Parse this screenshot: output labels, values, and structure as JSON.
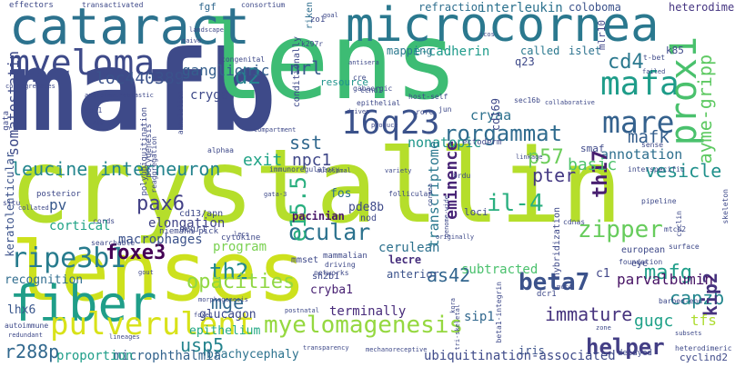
{
  "words": [
    {
      "text": "crystallin",
      "color": "#b5de2b"
    },
    {
      "text": "lenses",
      "color": "#cde11d"
    },
    {
      "text": "mafb",
      "color": "#3e4a89"
    },
    {
      "text": "lens",
      "color": "#3dbc74"
    },
    {
      "text": "microcornea",
      "color": "#2a788e"
    },
    {
      "text": "cataract",
      "color": "#2c728e"
    },
    {
      "text": "fiber",
      "color": "#1f9e89"
    },
    {
      "text": "myeloma",
      "color": "#3e4a89"
    },
    {
      "text": "mafa",
      "color": "#1e9c89"
    },
    {
      "text": "mare",
      "color": "#34618d"
    },
    {
      "text": "prox1",
      "color": "#4ac16d"
    },
    {
      "text": "16q23",
      "color": "#3b528b"
    },
    {
      "text": "d2",
      "color": "#26828e"
    },
    {
      "text": "pulverulent",
      "color": "#d8e219"
    },
    {
      "text": "ripe3b1",
      "color": "#287c8e"
    },
    {
      "text": "leucine",
      "color": "#24868e"
    },
    {
      "text": "interneuron",
      "color": "#25848e"
    },
    {
      "text": "rorgammat",
      "color": "#2f6b8e"
    },
    {
      "text": "myelomagenesis",
      "color": "#95d840"
    },
    {
      "text": "zipper",
      "color": "#67cc5c"
    },
    {
      "text": "ocular",
      "color": "#2c728e"
    },
    {
      "text": "foxe3",
      "color": "#440154"
    },
    {
      "text": "ganglionic",
      "color": "#355f8d"
    },
    {
      "text": "loc440389",
      "color": "#3b528b"
    },
    {
      "text": "nrl",
      "color": "#38598c"
    },
    {
      "text": "cd4",
      "color": "#2a788e"
    },
    {
      "text": "annotation",
      "color": "#2e6f8e"
    },
    {
      "text": "ayme-gripp",
      "color": "#5ec962"
    },
    {
      "text": "mafk",
      "color": "#355f8d"
    },
    {
      "text": "vesicle",
      "color": "#21918c"
    },
    {
      "text": "sst",
      "color": "#31688e"
    },
    {
      "text": "exit",
      "color": "#20a386"
    },
    {
      "text": "npc1",
      "color": "#3f4788"
    },
    {
      "text": "p57",
      "color": "#6ccd5a"
    },
    {
      "text": "il-4",
      "color": "#29af7f"
    },
    {
      "text": "th17",
      "color": "#481f70"
    },
    {
      "text": "pter",
      "color": "#443983"
    },
    {
      "text": "basic",
      "color": "#4ec36b"
    },
    {
      "text": "pax6",
      "color": "#424086"
    },
    {
      "text": "e15.5",
      "color": "#29af7f"
    },
    {
      "text": "as42",
      "color": "#32658e"
    },
    {
      "text": "beta7",
      "color": "#3b528b"
    },
    {
      "text": "th2",
      "color": "#23898e"
    },
    {
      "text": "mge",
      "color": "#31688e"
    },
    {
      "text": "opacities",
      "color": "#90d743"
    },
    {
      "text": "mafg",
      "color": "#1f9e89"
    },
    {
      "text": "immature",
      "color": "#46337e"
    },
    {
      "text": "capzb",
      "color": "#24878e"
    },
    {
      "text": "helper",
      "color": "#433e85"
    },
    {
      "text": "usp5",
      "color": "#25848e"
    },
    {
      "text": "r288p",
      "color": "#31688e"
    },
    {
      "text": "kip2",
      "color": "#46327e"
    },
    {
      "text": "gugc",
      "color": "#1fa188"
    },
    {
      "text": "tfs",
      "color": "#addc30"
    },
    {
      "text": "parvalbumin",
      "color": "#471365"
    },
    {
      "text": "eminence",
      "color": "#482576"
    },
    {
      "text": "nonatopic",
      "color": "#1f968b"
    },
    {
      "text": "cryaa",
      "color": "#2d718e"
    },
    {
      "text": "transcriptome",
      "color": "#2a788e"
    },
    {
      "text": "pv",
      "color": "#38598c"
    },
    {
      "text": "macrophages",
      "color": "#3b528b"
    },
    {
      "text": "elongation",
      "color": "#414487"
    },
    {
      "text": "cortical",
      "color": "#20a386"
    },
    {
      "text": "pacinian",
      "color": "#481769"
    },
    {
      "text": "cryba1",
      "color": "#482173"
    },
    {
      "text": "c1",
      "color": "#404688"
    },
    {
      "text": "sip1",
      "color": "#31688e"
    },
    {
      "text": "fos",
      "color": "#2d708e"
    },
    {
      "text": "pde8b",
      "color": "#3e4989"
    },
    {
      "text": "cerulean",
      "color": "#2d718e"
    },
    {
      "text": "lecre",
      "color": "#472f7d"
    },
    {
      "text": "subtracted",
      "color": "#4ac16d"
    },
    {
      "text": "anterior",
      "color": "#3b528b"
    },
    {
      "text": "terminally",
      "color": "#472a7a"
    },
    {
      "text": "program",
      "color": "#7ad151"
    },
    {
      "text": "glucagon",
      "color": "#3e4a89"
    },
    {
      "text": "epithelium",
      "color": "#22a884"
    },
    {
      "text": "brachycephaly",
      "color": "#2c728e"
    },
    {
      "text": "microphthalmia",
      "color": "#33638d"
    },
    {
      "text": "proportion",
      "color": "#1f9e89"
    },
    {
      "text": "ubiquitination-associated",
      "color": "#3e4a89"
    },
    {
      "text": "iris",
      "color": "#3b528b"
    },
    {
      "text": "recognition",
      "color": "#2f6c8e"
    },
    {
      "text": "lhx6",
      "color": "#39568c"
    },
    {
      "text": "keratolenticular",
      "color": "#3b528b"
    },
    {
      "text": "somatostatin",
      "color": "#3e4a89"
    },
    {
      "text": "cryga",
      "color": "#3e4989"
    },
    {
      "text": "resource",
      "color": "#1f948c"
    },
    {
      "text": "refraction",
      "color": "#2e6e8e"
    },
    {
      "text": "interleukin",
      "color": "#2c728e"
    },
    {
      "text": "coloboma",
      "color": "#3b528b"
    },
    {
      "text": "heterodimers",
      "color": "#453581"
    },
    {
      "text": "e-cadherin",
      "color": "#1e9b8a"
    },
    {
      "text": "mapping",
      "color": "#2a788e"
    },
    {
      "text": "called",
      "color": "#2a788e"
    },
    {
      "text": "islet",
      "color": "#2c728e"
    },
    {
      "text": "q23",
      "color": "#3e4989"
    },
    {
      "text": "k85",
      "color": "#3e4989"
    },
    {
      "text": "mlr10",
      "color": "#404588"
    },
    {
      "text": "cd169",
      "color": "#3e4989"
    },
    {
      "text": "smaf",
      "color": "#3e4989"
    },
    {
      "text": "fgf",
      "color": "#31688e"
    },
    {
      "text": "riken",
      "color": "#2e6e8e"
    },
    {
      "text": "eye",
      "color": "#3e4989"
    },
    {
      "text": "cyclind2",
      "color": "#3e4989"
    },
    {
      "text": "dcr1",
      "color": "#3e4989"
    },
    {
      "text": "ectoderm",
      "color": "#3e4989"
    },
    {
      "text": "cd13/apn",
      "color": "#3e4989"
    },
    {
      "text": "sh2b1",
      "color": "#3e4989"
    },
    {
      "text": "mmset",
      "color": "#3e4989"
    },
    {
      "text": "cytokine",
      "color": "#3e4989"
    },
    {
      "text": "negr1",
      "color": "#3e4989"
    },
    {
      "text": "nod",
      "color": "#3e4989"
    },
    {
      "text": "loci",
      "color": "#3e4989"
    },
    {
      "text": "hybridization",
      "color": "#3e4989"
    },
    {
      "text": "european",
      "color": "#3e4989"
    },
    {
      "text": "effectors",
      "color": "#3e4989"
    },
    {
      "text": "transactivated",
      "color": "#3e4989"
    },
    {
      "text": "consortium",
      "color": "#3e4989"
    },
    {
      "text": "zo1",
      "color": "#3e4989"
    },
    {
      "text": "landscape",
      "color": "#3e4989"
    },
    {
      "text": "naive",
      "color": "#3e4989"
    },
    {
      "text": "congenital",
      "color": "#3e4989"
    },
    {
      "text": "conditionally",
      "color": "#3e4989"
    },
    {
      "text": "k297r",
      "color": "#3e4989"
    },
    {
      "text": "icos",
      "color": "#3e4989"
    },
    {
      "text": "t-bet",
      "color": "#3e4989"
    },
    {
      "text": "failed",
      "color": "#3e4989"
    },
    {
      "text": "co-segregates",
      "color": "#3e4989"
    },
    {
      "text": "angioimmunoblastic",
      "color": "#3e4989"
    },
    {
      "text": "ap-1",
      "color": "#3e4989"
    },
    {
      "text": "b-zip",
      "color": "#3e4989"
    },
    {
      "text": "cre",
      "color": "#3e4989"
    },
    {
      "text": "gabaergic",
      "color": "#3e4989"
    },
    {
      "text": "antisera",
      "color": "#3e4989"
    },
    {
      "text": "epithelial",
      "color": "#3e4989"
    },
    {
      "text": "ccnd1",
      "color": "#3e4989"
    },
    {
      "text": "host-self",
      "color": "#3e4989"
    },
    {
      "text": "rorc",
      "color": "#3e4989"
    },
    {
      "text": "driven",
      "color": "#3e4989"
    },
    {
      "text": "sec16b",
      "color": "#3e4989"
    },
    {
      "text": "collaborative",
      "color": "#3e4989"
    },
    {
      "text": "polyubiquitination",
      "color": "#3e4989"
    },
    {
      "text": "polygenesis",
      "color": "#3e4989"
    },
    {
      "text": "reaggregation",
      "color": "#3e4989"
    },
    {
      "text": "annulation",
      "color": "#3e4989"
    },
    {
      "text": "compartment",
      "color": "#3e4989"
    },
    {
      "text": "alphaa",
      "color": "#3e4989"
    },
    {
      "text": "immunoregulatory",
      "color": "#3e4989"
    },
    {
      "text": "autosomal",
      "color": "#3e4989"
    },
    {
      "text": "brdu",
      "color": "#3e4989"
    },
    {
      "text": "linkage",
      "color": "#3e4989"
    },
    {
      "text": "sense",
      "color": "#3e4989"
    },
    {
      "text": "interspecific",
      "color": "#3e4989"
    },
    {
      "text": "variety",
      "color": "#3e4989"
    },
    {
      "text": "situ",
      "color": "#3e4989"
    },
    {
      "text": "collated",
      "color": "#3e4989"
    },
    {
      "text": "posterior",
      "color": "#3e4989"
    },
    {
      "text": "gata-3",
      "color": "#3e4989"
    },
    {
      "text": "cords",
      "color": "#3e4989"
    },
    {
      "text": "niemann-pick",
      "color": "#3e4989"
    },
    {
      "text": "lecs",
      "color": "#3e4989"
    },
    {
      "text": "searchable",
      "color": "#3e4989"
    },
    {
      "text": "follicular",
      "color": "#3e4989"
    },
    {
      "text": "cornea",
      "color": "#3e4989"
    },
    {
      "text": "genome-wide",
      "color": "#3e4989"
    },
    {
      "text": "pipeline",
      "color": "#3e4989"
    },
    {
      "text": "mtch2",
      "color": "#3e4989"
    },
    {
      "text": "cyclin",
      "color": "#3e4989"
    },
    {
      "text": "cdnas",
      "color": "#3e4989"
    },
    {
      "text": "gout",
      "color": "#3e4989"
    },
    {
      "text": "originally",
      "color": "#3e4989"
    },
    {
      "text": "surface",
      "color": "#3e4989"
    },
    {
      "text": "foundation",
      "color": "#3e4989"
    },
    {
      "text": "autoimmune",
      "color": "#3e4989"
    },
    {
      "text": "mammalian",
      "color": "#3e4989"
    },
    {
      "text": "driving",
      "color": "#3e4989"
    },
    {
      "text": "networks",
      "color": "#3e4989"
    },
    {
      "text": "kora",
      "color": "#3e4989"
    },
    {
      "text": "tri-skeletal",
      "color": "#3e4989"
    },
    {
      "text": "beta1-integrin",
      "color": "#3e4989"
    },
    {
      "text": "barbed-end",
      "color": "#3e4989"
    },
    {
      "text": "morphogenesis",
      "color": "#3e4989"
    },
    {
      "text": "foxe1",
      "color": "#3e4989"
    },
    {
      "text": "postnatal",
      "color": "#3e4989"
    },
    {
      "text": "redundant",
      "color": "#3e4989"
    },
    {
      "text": "lineages",
      "color": "#3e4989"
    },
    {
      "text": "transparency",
      "color": "#3e4989"
    },
    {
      "text": "mechanoreceptive",
      "color": "#3e4989"
    },
    {
      "text": "delayed",
      "color": "#3e4989"
    },
    {
      "text": "heterodimeric",
      "color": "#3e4989"
    },
    {
      "text": "subsets",
      "color": "#3e4989"
    },
    {
      "text": "zone",
      "color": "#3e4989"
    },
    {
      "text": "mcr4",
      "color": "#3e4989"
    },
    {
      "text": "produce",
      "color": "#3e4989"
    },
    {
      "text": "jun",
      "color": "#3e4989"
    },
    {
      "text": "goal",
      "color": "#3e4989"
    },
    {
      "text": "gata",
      "color": "#3e4989"
    },
    {
      "text": "skeleton",
      "color": "#3e4989"
    }
  ]
}
